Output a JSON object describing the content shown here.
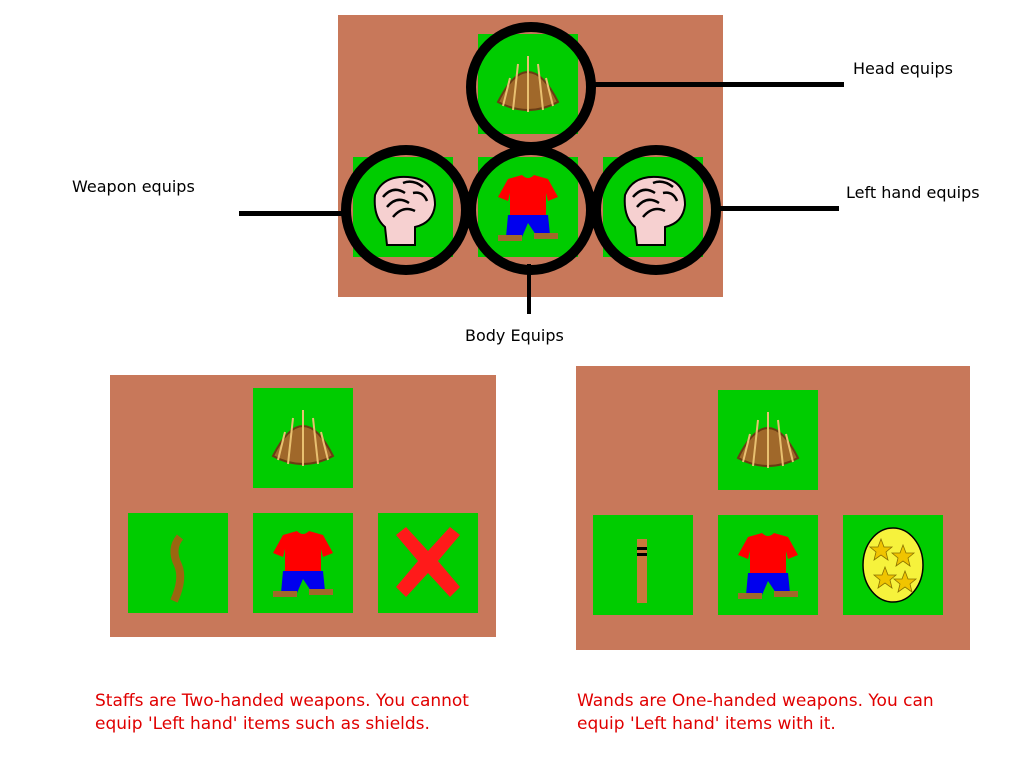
{
  "labels": {
    "head": "Head equips",
    "weapon": "Weapon equips",
    "left_hand": "Left hand equips",
    "body": "Body Equips"
  },
  "captions": {
    "staff": "Staffs are Two-handed weapons. You cannot equip 'Left hand' items such as shields.",
    "wand": "Wands are One-handed weapons. You can equip 'Left hand' items with it."
  },
  "colors": {
    "panel": "#c8785a",
    "slot": "#00cc00",
    "caption_text": "#e00000"
  },
  "icons": {
    "hat": "straw-hat-icon",
    "fist": "fist-icon",
    "shirt": "shirt-and-pants-icon",
    "staff": "staff-icon",
    "wand": "wand-icon",
    "cross": "red-x-icon",
    "orb": "star-orb-icon"
  }
}
